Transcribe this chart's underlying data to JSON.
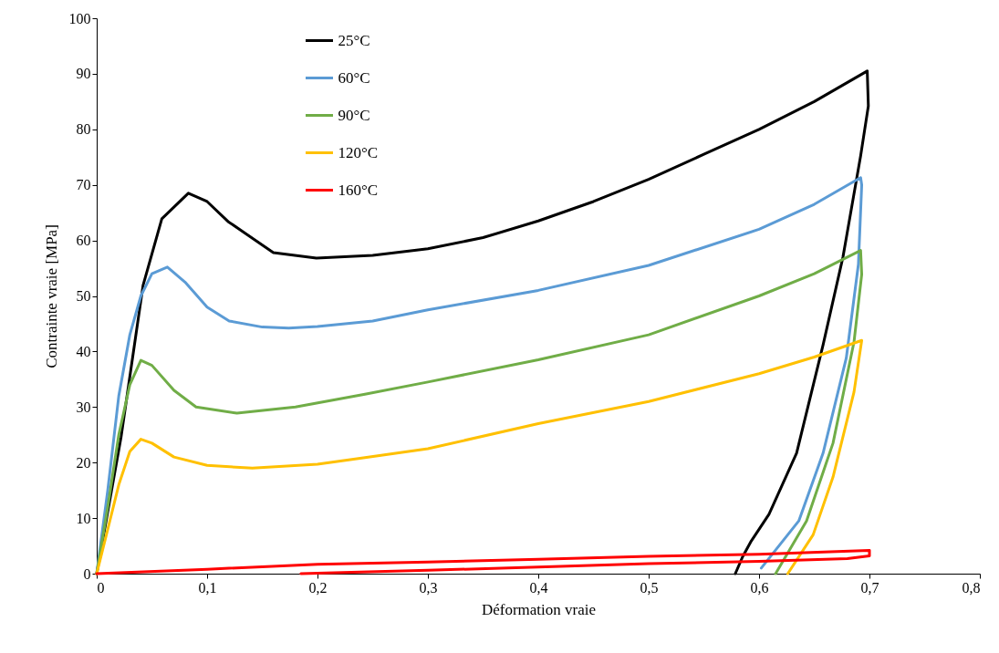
{
  "chart_data": {
    "type": "line",
    "xlabel": "Déformation vraie",
    "ylabel": "Contrainte vraie [MPa]",
    "xlim": [
      0,
      0.8
    ],
    "ylim": [
      0,
      100
    ],
    "xticks": [
      0,
      {
        "value": 0.1,
        "label": "0,1"
      },
      {
        "value": 0.2,
        "label": "0,2"
      },
      {
        "value": 0.3,
        "label": "0,3"
      },
      {
        "value": 0.4,
        "label": "0,4"
      },
      {
        "value": 0.5,
        "label": "0,5"
      },
      {
        "value": 0.6,
        "label": "0,6"
      },
      {
        "value": 0.7,
        "label": "0,7"
      },
      {
        "value": 0.8,
        "label": "0,8"
      }
    ],
    "yticks": [
      0,
      10,
      20,
      30,
      40,
      50,
      60,
      70,
      80,
      90,
      100
    ],
    "grid": false,
    "legend": "top left",
    "marker": "none",
    "line_style": "solid",
    "series": [
      {
        "name": "25°C",
        "color": "#000000",
        "x": [
          0,
          0.022,
          0.042,
          0.059,
          0.083,
          0.1,
          0.119,
          0.16,
          0.199,
          0.25,
          0.3,
          0.35,
          0.4,
          0.45,
          0.5,
          0.55,
          0.6,
          0.65,
          0.698,
          0.699,
          0.692,
          0.676,
          0.658,
          0.634,
          0.609,
          0.593,
          0.585,
          0.5785
        ],
        "values": [
          0,
          24.5,
          51.9,
          63.9,
          68.5,
          67,
          63.4,
          57.8,
          56.8,
          57.3,
          58.5,
          60.5,
          63.5,
          67,
          71,
          75.5,
          80,
          85,
          90.5,
          84.2,
          75.2,
          57,
          41.2,
          21.7,
          10.7,
          5.9,
          3,
          0
        ]
      },
      {
        "name": "60°C",
        "color": "#5b9bd5",
        "x": [
          0,
          0.01,
          0.02,
          0.03,
          0.04,
          0.05,
          0.064,
          0.08,
          0.1,
          0.12,
          0.15,
          0.174,
          0.2,
          0.25,
          0.3,
          0.4,
          0.5,
          0.6,
          0.65,
          0.692,
          0.693,
          0.69,
          0.679,
          0.658,
          0.636,
          0.602
        ],
        "values": [
          0,
          15,
          32,
          43,
          50,
          54,
          55.2,
          52.5,
          48,
          45.5,
          44.4,
          44.2,
          44.5,
          45.5,
          47.5,
          51,
          55.5,
          62,
          66.5,
          71.3,
          70,
          55.7,
          38.8,
          21.7,
          9.5,
          1
        ]
      },
      {
        "name": "90°C",
        "color": "#70ad47",
        "x": [
          0,
          0.01,
          0.02,
          0.03,
          0.04,
          0.05,
          0.07,
          0.09,
          0.127,
          0.18,
          0.243,
          0.3,
          0.4,
          0.5,
          0.6,
          0.65,
          0.692,
          0.693,
          0.686,
          0.667,
          0.643,
          0.615
        ],
        "values": [
          0,
          12,
          25,
          34,
          38.4,
          37.5,
          33,
          30,
          28.9,
          30,
          32.3,
          34.5,
          38.5,
          43,
          50,
          54,
          58.2,
          53.9,
          41.7,
          23.5,
          9.5,
          0
        ]
      },
      {
        "name": "120°C",
        "color": "#ffc000",
        "x": [
          0,
          0.01,
          0.02,
          0.03,
          0.04,
          0.05,
          0.07,
          0.1,
          0.141,
          0.2,
          0.243,
          0.3,
          0.4,
          0.5,
          0.6,
          0.65,
          0.693,
          0.686,
          0.667,
          0.649,
          0.626
        ],
        "values": [
          0,
          8,
          16,
          22,
          24.2,
          23.5,
          21,
          19.5,
          19,
          19.7,
          20.9,
          22.5,
          27,
          31,
          36,
          39,
          42,
          32.7,
          17.4,
          7,
          0
        ]
      },
      {
        "name": "160°C",
        "color": "#ff0000",
        "x": [
          0,
          0.1,
          0.2,
          0.3,
          0.4,
          0.5,
          0.6,
          0.7,
          0.7,
          0.68,
          0.6,
          0.5,
          0.4,
          0.3,
          0.2,
          0.185
        ],
        "values": [
          0,
          0.8,
          1.7,
          2.1,
          2.6,
          3.1,
          3.5,
          4.2,
          3.2,
          2.7,
          2.2,
          1.8,
          1.2,
          0.6,
          0.1,
          0
        ]
      }
    ]
  }
}
